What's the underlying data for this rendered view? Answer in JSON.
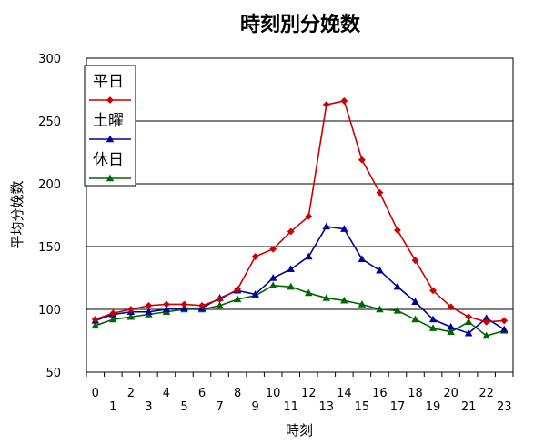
{
  "chart_data": {
    "type": "line",
    "title": "時刻別分娩数",
    "xlabel": "時刻",
    "ylabel": "平均分娩数",
    "x": [
      0,
      1,
      2,
      3,
      4,
      5,
      6,
      7,
      8,
      9,
      10,
      11,
      12,
      13,
      14,
      15,
      16,
      17,
      18,
      19,
      20,
      21,
      22,
      23
    ],
    "ylim": [
      50,
      300
    ],
    "yticks": [
      50,
      100,
      150,
      200,
      250,
      300
    ],
    "grid": true,
    "legend_position": "top-left",
    "series": [
      {
        "name": "平日",
        "color": "#cc0000",
        "marker": "diamond",
        "values": [
          92,
          97,
          100,
          103,
          104,
          104,
          103,
          108,
          116,
          142,
          148,
          162,
          174,
          263,
          266,
          219,
          193,
          163,
          139,
          115,
          102,
          94,
          90,
          91
        ]
      },
      {
        "name": "土曜",
        "color": "#000099",
        "marker": "triangle",
        "values": [
          91,
          96,
          98,
          98,
          100,
          101,
          101,
          109,
          115,
          112,
          125,
          132,
          142,
          166,
          164,
          140,
          131,
          118,
          106,
          92,
          86,
          81,
          93,
          84
        ]
      },
      {
        "name": "休日",
        "color": "#006600",
        "marker": "triangle",
        "values": [
          87,
          92,
          94,
          96,
          98,
          100,
          100,
          103,
          108,
          111,
          119,
          118,
          113,
          109,
          107,
          104,
          100,
          99,
          92,
          85,
          82,
          90,
          79,
          83
        ]
      }
    ]
  }
}
